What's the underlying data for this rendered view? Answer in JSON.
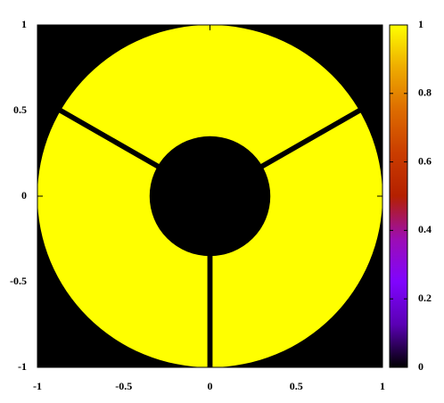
{
  "chart_data": {
    "type": "image",
    "xlim": [
      -1,
      1
    ],
    "ylim": [
      -1,
      1
    ],
    "xticks": [
      -1,
      -0.5,
      0,
      0.5,
      1
    ],
    "yticks": [
      -1,
      -0.5,
      0,
      0.5,
      1
    ],
    "cblim": [
      0,
      1
    ],
    "cbticks": [
      0,
      0.2,
      0.4,
      0.6,
      0.8,
      1
    ],
    "palette": [
      "#000000",
      "#5a00b4",
      "#8004ff",
      "#9c0db4",
      "#b42000",
      "#ca3d00",
      "#dd6b00",
      "#eeab00",
      "#ffff00"
    ],
    "mask": {
      "outer_radius": 1,
      "inner_radius": 0.35,
      "vane_angles_deg": [
        30,
        150,
        270
      ],
      "vane_width": 0.03,
      "inside_value": 1,
      "outside_value": 0
    }
  }
}
